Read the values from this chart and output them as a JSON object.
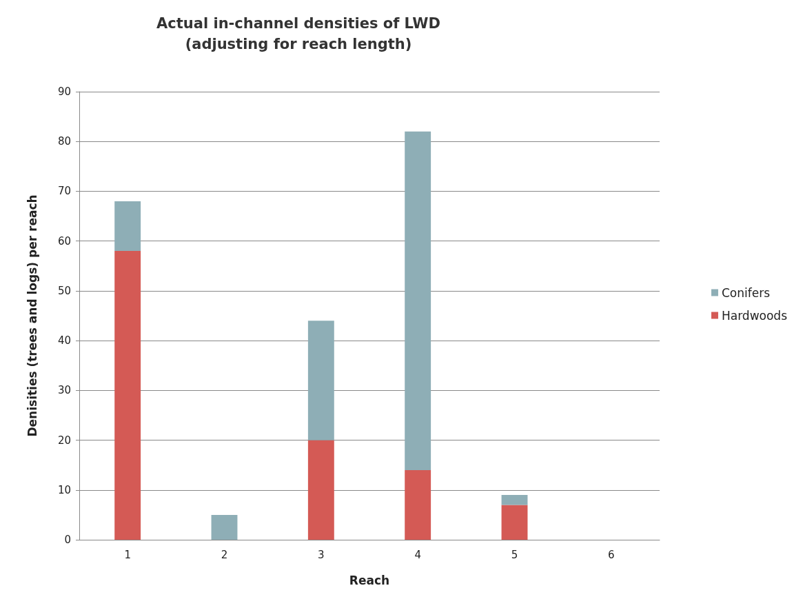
{
  "chart_data": {
    "type": "bar",
    "title": "Actual in-channel densities of LWD\n(adjusting for reach length)",
    "xlabel": "Reach",
    "ylabel": "Denisities (trees and logs) per reach",
    "categories": [
      "1",
      "2",
      "3",
      "4",
      "5",
      "6"
    ],
    "stacked": true,
    "series": [
      {
        "name": "Hardwoods",
        "color": "#d45a55",
        "values": [
          58,
          0,
          20,
          14,
          7,
          0
        ]
      },
      {
        "name": "Conifers",
        "color": "#8eaeb6",
        "values": [
          10,
          5,
          24,
          68,
          2,
          0
        ]
      }
    ],
    "ylim": [
      0,
      90
    ],
    "yticks": [
      0,
      10,
      20,
      30,
      40,
      50,
      60,
      70,
      80,
      90
    ],
    "grid": "y",
    "legend": "right"
  }
}
